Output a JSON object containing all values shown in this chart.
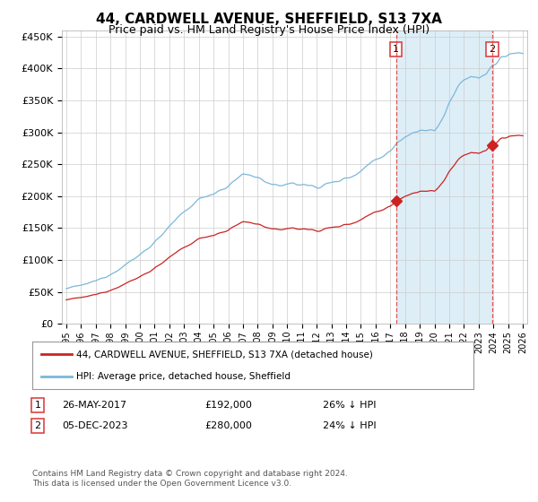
{
  "title": "44, CARDWELL AVENUE, SHEFFIELD, S13 7XA",
  "subtitle": "Price paid vs. HM Land Registry's House Price Index (HPI)",
  "ylim": [
    0,
    460000
  ],
  "yticks": [
    0,
    50000,
    100000,
    150000,
    200000,
    250000,
    300000,
    350000,
    400000,
    450000
  ],
  "ytick_labels": [
    "£0",
    "£50K",
    "£100K",
    "£150K",
    "£200K",
    "£250K",
    "£300K",
    "£350K",
    "£400K",
    "£450K"
  ],
  "hpi_color": "#7ab8d9",
  "sale_color": "#cc2222",
  "vline_color": "#dd4444",
  "shade_color": "#ddeef7",
  "sale1_year": 2017.393,
  "sale2_year": 2023.921,
  "sale1_value": 192000,
  "sale2_value": 280000,
  "sale1_date": "26-MAY-2017",
  "sale2_date": "05-DEC-2023",
  "sale1_pct": "26% ↓ HPI",
  "sale2_pct": "24% ↓ HPI",
  "legend_label1": "44, CARDWELL AVENUE, SHEFFIELD, S13 7XA (detached house)",
  "legend_label2": "HPI: Average price, detached house, Sheffield",
  "footer1": "Contains HM Land Registry data © Crown copyright and database right 2024.",
  "footer2": "This data is licensed under the Open Government Licence v3.0.",
  "background_color": "#ffffff",
  "grid_color": "#cccccc",
  "title_fontsize": 11,
  "subtitle_fontsize": 9
}
